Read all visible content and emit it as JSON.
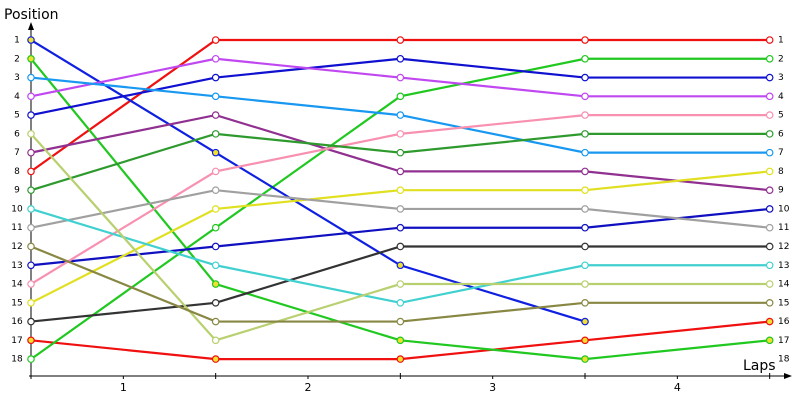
{
  "chart_data": {
    "type": "line",
    "y_label": "Position",
    "x_label": "Laps",
    "x": [
      0,
      1,
      2,
      3,
      4
    ],
    "xlim": [
      0,
      4.11
    ],
    "xticks": [
      {
        "value": 0.5,
        "label": "1"
      },
      {
        "value": 1.5,
        "label": "2"
      },
      {
        "value": 2.5,
        "label": "3"
      },
      {
        "value": 3.5,
        "label": "4"
      }
    ],
    "ylim": [
      18.9,
      0.2
    ],
    "yticks": [
      1,
      2,
      3,
      4,
      5,
      6,
      7,
      8,
      9,
      10,
      11,
      12,
      13,
      14,
      15,
      16,
      17,
      18
    ],
    "y2lim": [
      18.9,
      0.2
    ],
    "y2ticks": [
      1,
      2,
      3,
      4,
      5,
      6,
      7,
      8,
      9,
      10,
      11,
      12,
      13,
      14,
      15,
      16,
      17,
      18
    ],
    "grid": false,
    "series": [
      {
        "color": "#f01010",
        "marker_fill": "#ffffff",
        "values": [
          8,
          1,
          1,
          1,
          1
        ]
      },
      {
        "color": "#f01010",
        "marker_fill": "#f0e030",
        "values": [
          17,
          18,
          18,
          17,
          16
        ]
      },
      {
        "color": "#20c820",
        "marker_fill": "#f0e030",
        "values": [
          2,
          14,
          17,
          18,
          17
        ]
      },
      {
        "color": "#20c820",
        "marker_fill": "#ffffff",
        "values": [
          18,
          11,
          4,
          2,
          2
        ]
      },
      {
        "color": "#1020e0",
        "marker_fill": "#f0e030",
        "values": [
          1,
          7,
          13,
          16,
          null
        ]
      },
      {
        "color": "#1010d0",
        "marker_fill": "#ffffff",
        "values": [
          5,
          3,
          2,
          3,
          3
        ]
      },
      {
        "color": "#1010c0",
        "marker_fill": "#ffffff",
        "values": [
          13,
          12,
          11,
          11,
          10
        ]
      },
      {
        "color": "#c048f0",
        "marker_fill": "#ffffff",
        "values": [
          4,
          2,
          3,
          4,
          4
        ]
      },
      {
        "color": "#903090",
        "marker_fill": "#ffffff",
        "values": [
          7,
          5,
          8,
          8,
          9
        ]
      },
      {
        "color": "#1898f0",
        "marker_fill": "#ffffff",
        "values": [
          3,
          4,
          5,
          7,
          7
        ]
      },
      {
        "color": "#f890b0",
        "marker_fill": "#ffffff",
        "values": [
          14,
          8,
          6,
          5,
          5
        ]
      },
      {
        "color": "#2e9a2e",
        "marker_fill": "#ffffff",
        "values": [
          9,
          6,
          7,
          6,
          6
        ]
      },
      {
        "color": "#e0e020",
        "marker_fill": "#ffffff",
        "values": [
          15,
          10,
          9,
          9,
          8
        ]
      },
      {
        "color": "#a0a0a0",
        "marker_fill": "#ffffff",
        "values": [
          11,
          9,
          10,
          10,
          11
        ]
      },
      {
        "color": "#333333",
        "marker_fill": "#ffffff",
        "values": [
          16,
          15,
          12,
          12,
          12
        ]
      },
      {
        "color": "#40d0d0",
        "marker_fill": "#ffffff",
        "values": [
          10,
          13,
          15,
          13,
          13
        ]
      },
      {
        "color": "#b8d070",
        "marker_fill": "#ffffff",
        "values": [
          6,
          17,
          14,
          14,
          14
        ]
      },
      {
        "color": "#888844",
        "marker_fill": "#ffffff",
        "values": [
          12,
          16,
          16,
          15,
          15
        ]
      }
    ]
  }
}
